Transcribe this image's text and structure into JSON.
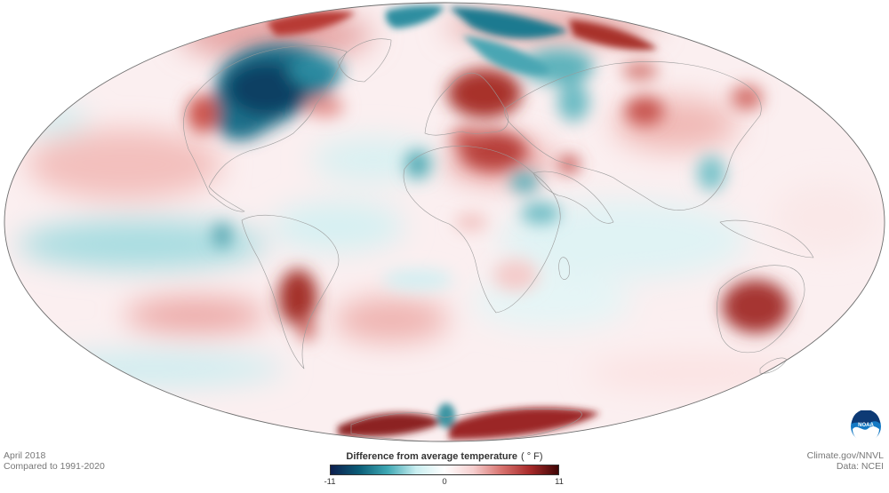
{
  "map": {
    "projection": "mollweide",
    "variable": "temperature anomaly"
  },
  "legend": {
    "title": "Difference from average temperature",
    "unit": "( ° F)",
    "min_label": "-11",
    "mid_label": "0",
    "max_label": "11",
    "colors": [
      "#0d1f4f",
      "#0b5d77",
      "#3fa8b4",
      "#c9eef0",
      "#ffffff",
      "#f6cfcf",
      "#d8736f",
      "#a82a2a",
      "#3f0505"
    ]
  },
  "info": {
    "date": "April 2018",
    "baseline": "Compared to 1991-2020"
  },
  "credits": {
    "site": "Climate.gov/NNVL",
    "source": "Data: NCEI"
  },
  "logo": {
    "text": "NOAA",
    "icon": "noaa-logo-icon"
  }
}
